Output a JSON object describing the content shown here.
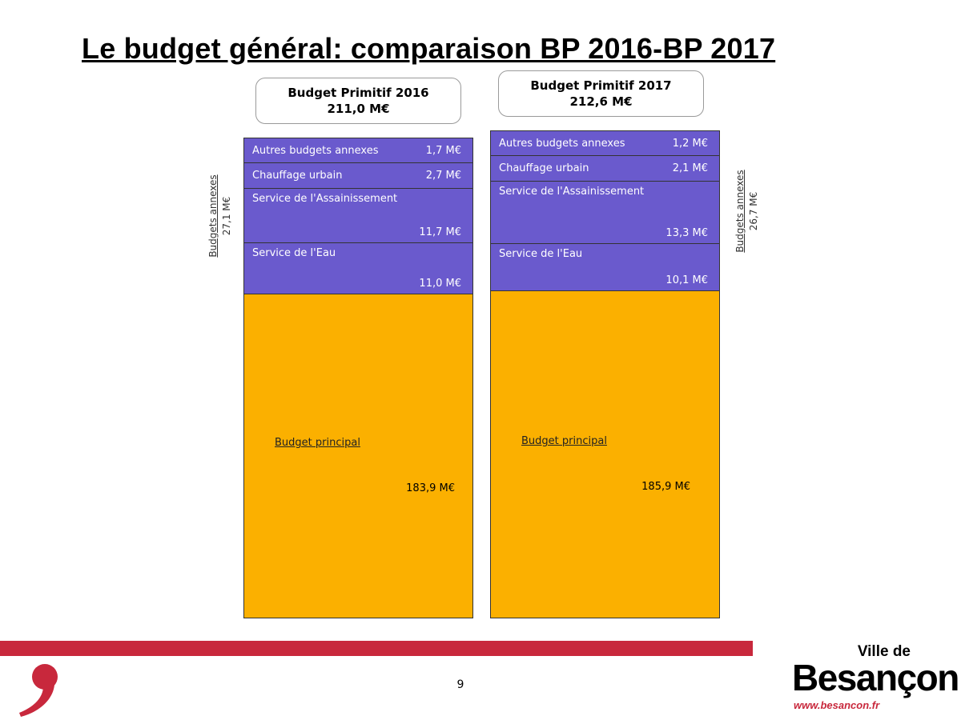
{
  "title": "Le budget général: comparaison BP 2016-BP 2017",
  "page_number": "9",
  "brand": {
    "ville": "Ville de",
    "city": "Besançon",
    "url": "www.besancon.fr",
    "logo_icon": "red-comma-icon"
  },
  "colors": {
    "annex": "#6a5acd",
    "main": "#fbb000",
    "accent": "#c8283c"
  },
  "chart_data": {
    "type": "bar",
    "stacked": true,
    "unit": "M€",
    "columns": [
      {
        "header": [
          "Budget Primitif 2016",
          "211,0 M€"
        ],
        "total": 211.0,
        "side_label": {
          "name": "Budgets annexes",
          "amount": "27,1 M€"
        },
        "segments": [
          {
            "label": "Autres budgets annexes",
            "value": 1.7,
            "display": "1,7 M€",
            "group": "annex"
          },
          {
            "label": "Chauffage urbain",
            "value": 2.7,
            "display": "2,7 M€",
            "group": "annex"
          },
          {
            "label": "Service de l'Assainissement",
            "value": 11.7,
            "display": "11,7 M€",
            "group": "annex"
          },
          {
            "label": "Service de l'Eau",
            "value": 11.0,
            "display": "11,0 M€",
            "group": "annex"
          },
          {
            "label": "Budget principal",
            "value": 183.9,
            "display": "183,9 M€",
            "group": "main"
          }
        ]
      },
      {
        "header": [
          "Budget Primitif 2017",
          "212,6 M€"
        ],
        "total": 212.6,
        "side_label": {
          "name": "Budgets annexes",
          "amount": "26,7 M€"
        },
        "segments": [
          {
            "label": "Autres budgets annexes",
            "value": 1.2,
            "display": "1,2 M€",
            "group": "annex"
          },
          {
            "label": "Chauffage urbain",
            "value": 2.1,
            "display": "2,1 M€",
            "group": "annex"
          },
          {
            "label": "Service de l'Assainissement",
            "value": 13.3,
            "display": "13,3 M€",
            "group": "annex"
          },
          {
            "label": "Service de l'Eau",
            "value": 10.1,
            "display": "10,1 M€",
            "group": "annex"
          },
          {
            "label": "Budget principal",
            "value": 185.9,
            "display": "185,9 M€",
            "group": "main"
          }
        ]
      }
    ]
  }
}
